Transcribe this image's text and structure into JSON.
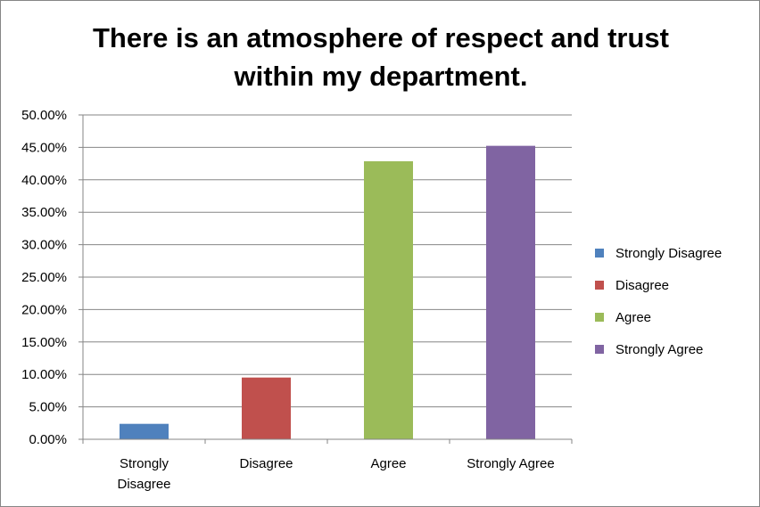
{
  "chart_data": {
    "type": "bar",
    "title_lines": [
      "There is an atmosphere of respect and trust",
      "within my department."
    ],
    "categories": [
      "Strongly Disagree",
      "Disagree",
      "Agree",
      "Strongly Agree"
    ],
    "category_label_lines": [
      [
        "Strongly",
        "Disagree"
      ],
      [
        "Disagree"
      ],
      [
        "Agree"
      ],
      [
        "Strongly Agree"
      ]
    ],
    "values": [
      2.38,
      9.52,
      42.86,
      45.24
    ],
    "colors": [
      "#4F81BD",
      "#C0504D",
      "#9BBB59",
      "#8064A2"
    ],
    "y_ticks": [
      "0.00%",
      "5.00%",
      "10.00%",
      "15.00%",
      "20.00%",
      "25.00%",
      "30.00%",
      "35.00%",
      "40.00%",
      "45.00%",
      "50.00%"
    ],
    "ylim": [
      0,
      50
    ],
    "grid": true,
    "legend": {
      "position": "right",
      "entries": [
        "Strongly Disagree",
        "Disagree",
        "Agree",
        "Strongly Agree"
      ]
    }
  }
}
